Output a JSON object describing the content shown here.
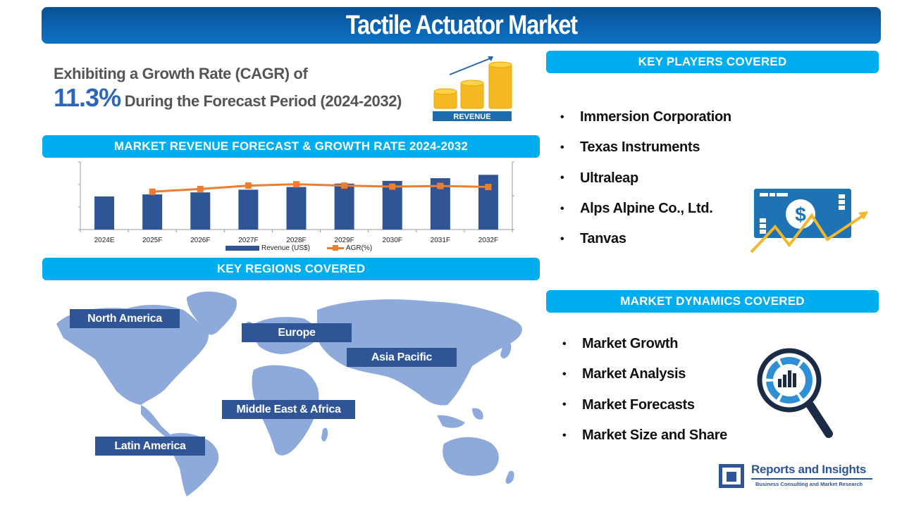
{
  "header": {
    "title": "Tactile Actuator Market"
  },
  "cagr": {
    "prefix": "Exhibiting a Growth Rate (CAGR) of",
    "value": "11.3%",
    "suffix": " During the Forecast Period (2024-2032)",
    "icon_label": "REVENUE"
  },
  "sections": {
    "forecast": "MARKET REVENUE FORECAST & GROWTH RATE 2024-2032",
    "regions": "KEY REGIONS COVERED",
    "players": "KEY PLAYERS COVERED",
    "dynamics": "MARKET DYNAMICS COVERED"
  },
  "chart_data": {
    "type": "bar",
    "title": "MARKET REVENUE FORECAST & GROWTH RATE 2024-2032",
    "categories": [
      "2024E",
      "2025F",
      "2026F",
      "2027F",
      "2028F",
      "2029F",
      "2030F",
      "2031F",
      "2032F"
    ],
    "series": [
      {
        "name": "Revenue (US$)",
        "type": "bar",
        "axis": "left",
        "color": "#2f5597",
        "values": [
          49,
          52,
          55,
          59,
          63,
          68,
          72,
          76,
          81
        ]
      },
      {
        "name": "AGR(%)",
        "type": "line",
        "axis": "right",
        "color": "#ed7d31",
        "values": [
          null,
          11.2,
          12.0,
          13.0,
          13.4,
          13.0,
          12.7,
          12.9,
          12.6
        ]
      }
    ],
    "xlabel": "",
    "ylabel": "",
    "ylim_left": [
      0,
      100
    ],
    "ylim_right": [
      0,
      20
    ],
    "axis_tick_labels_visible": false,
    "grid": false,
    "legend_position": "bottom",
    "legend": [
      "Revenue (US$)",
      "AGR(%)"
    ]
  },
  "regions": [
    {
      "label": "North America"
    },
    {
      "label": "Europe"
    },
    {
      "label": "Asia Pacific"
    },
    {
      "label": "Middle East & Africa"
    },
    {
      "label": "Latin America"
    }
  ],
  "players": [
    "Immersion Corporation",
    "Texas Instruments",
    "Ultraleap",
    "Alps Alpine Co., Ltd.",
    "Tanvas"
  ],
  "dynamics": [
    "Market Growth",
    "Market Analysis",
    "Market Forecasts",
    "Market Size and Share"
  ],
  "bullet_char": "•",
  "logo": {
    "name": "Reports and Insights",
    "tagline": "Business Consulting and Market Research"
  },
  "colors": {
    "title_bar": "#0b66b4",
    "section_bar": "#00adee",
    "bar": "#2f5597",
    "line": "#ed7d31",
    "map": "#8eaadb",
    "cagr_accent": "#2f67b8"
  }
}
